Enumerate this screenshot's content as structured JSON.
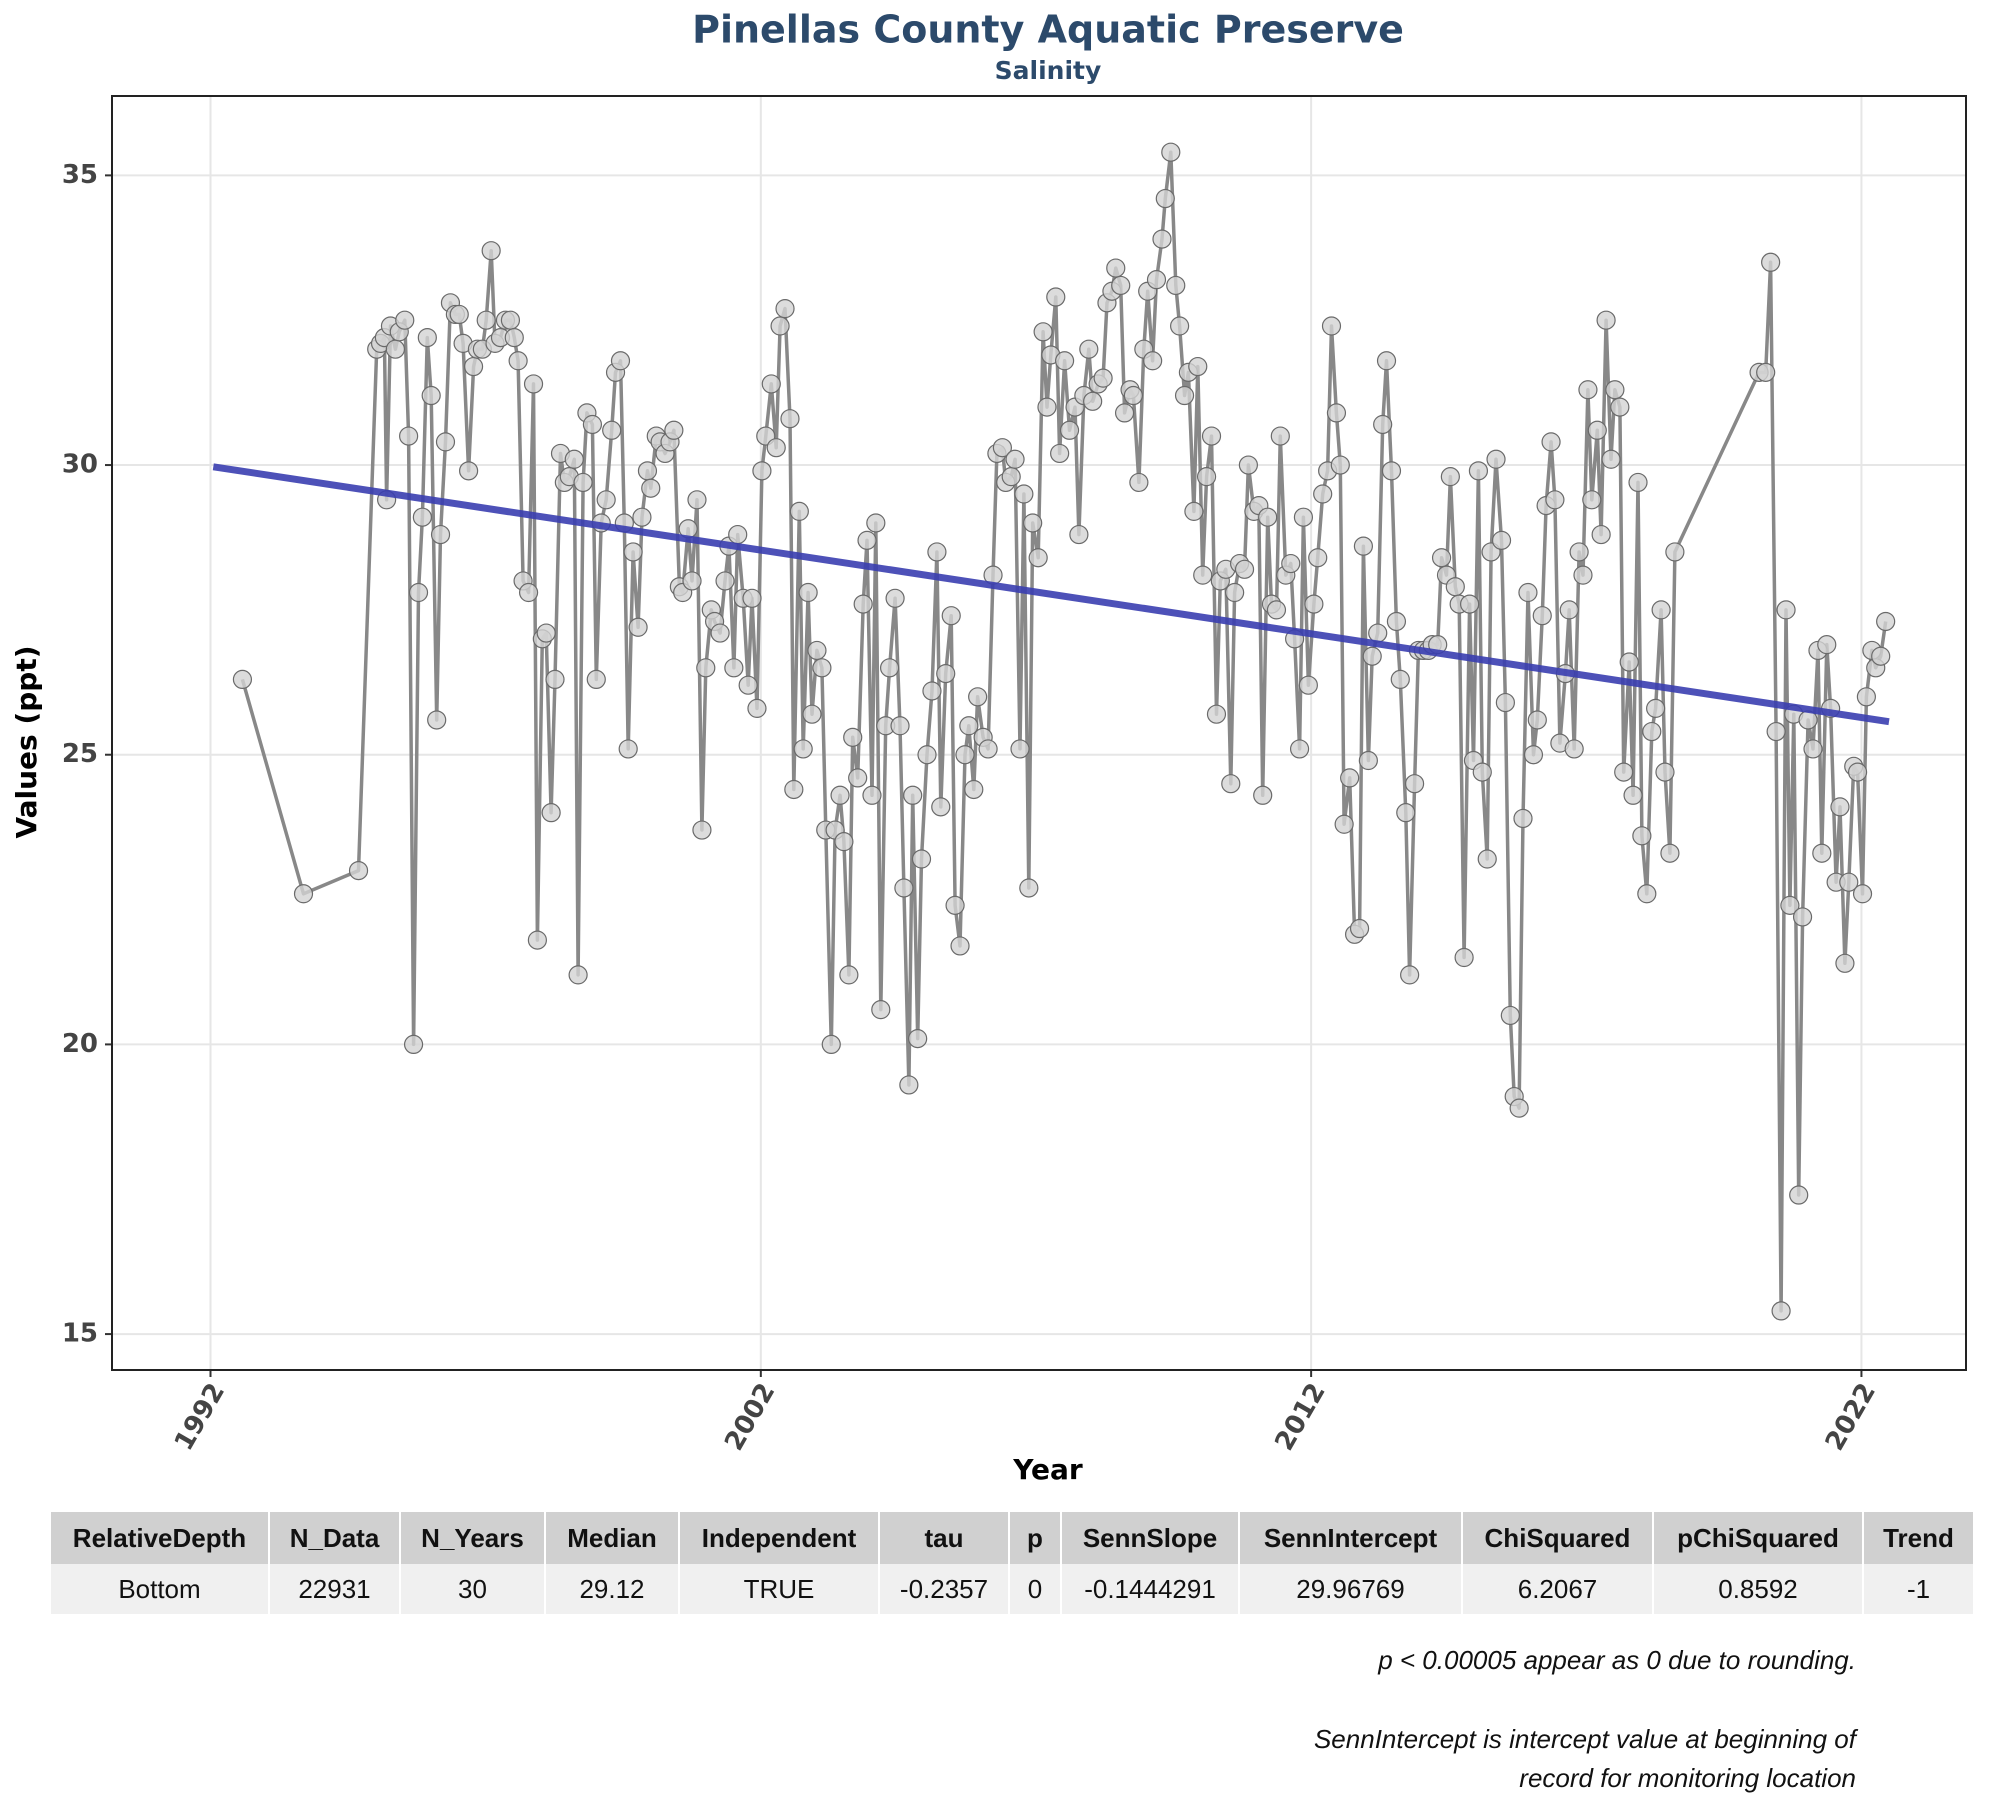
{
  "chart_data": {
    "type": "line",
    "title": "Pinellas County Aquatic Preserve",
    "subtitle": "Salinity",
    "x_label": "Year",
    "y_label": "Values (ppt)",
    "xlim": [
      1990.21,
      2023.9
    ],
    "ylim": [
      14.38,
      36.37
    ],
    "xticks": [
      1992,
      2002,
      2012,
      2022
    ],
    "yticks": [
      15,
      20,
      25,
      30,
      35
    ],
    "grid": true,
    "x": [
      1992.58,
      1993.69,
      1994.69,
      1995.02,
      1995.09,
      1995.16,
      1995.2,
      1995.27,
      1995.36,
      1995.43,
      1995.53,
      1995.6,
      1995.69,
      1995.78,
      1995.85,
      1995.94,
      1996.01,
      1996.11,
      1996.18,
      1996.27,
      1996.36,
      1996.45,
      1996.52,
      1996.59,
      1996.69,
      1996.78,
      1996.85,
      1996.94,
      1997.01,
      1997.1,
      1997.17,
      1997.27,
      1997.36,
      1997.45,
      1997.52,
      1997.59,
      1997.68,
      1997.78,
      1997.87,
      1997.94,
      1998.03,
      1998.1,
      1998.19,
      1998.26,
      1998.36,
      1998.43,
      1998.52,
      1998.61,
      1998.68,
      1998.77,
      1998.84,
      1998.94,
      1999.01,
      1999.1,
      1999.19,
      1999.29,
      1999.36,
      1999.45,
      1999.52,
      1999.59,
      1999.68,
      1999.77,
      1999.84,
      1999.94,
      2000.0,
      2000.1,
      2000.17,
      2000.26,
      2000.35,
      2000.42,
      2000.52,
      2000.58,
      2000.68,
      2000.75,
      2000.84,
      2000.93,
      2001.0,
      2001.1,
      2001.16,
      2001.26,
      2001.35,
      2001.42,
      2001.51,
      2001.58,
      2001.68,
      2001.77,
      2001.84,
      2001.93,
      2002.02,
      2002.09,
      2002.19,
      2002.28,
      2002.35,
      2002.44,
      2002.53,
      2002.6,
      2002.7,
      2002.77,
      2002.86,
      2002.93,
      2003.02,
      2003.11,
      2003.18,
      2003.28,
      2003.35,
      2003.44,
      2003.51,
      2003.6,
      2003.67,
      2003.76,
      2003.86,
      2003.93,
      2004.02,
      2004.09,
      2004.18,
      2004.27,
      2004.34,
      2004.44,
      2004.53,
      2004.6,
      2004.69,
      2004.76,
      2004.85,
      2004.92,
      2005.02,
      2005.11,
      2005.2,
      2005.27,
      2005.36,
      2005.46,
      2005.53,
      2005.62,
      2005.71,
      2005.78,
      2005.87,
      2005.94,
      2006.04,
      2006.13,
      2006.22,
      2006.29,
      2006.39,
      2006.45,
      2006.55,
      2006.62,
      2006.71,
      2006.78,
      2006.87,
      2006.94,
      2007.04,
      2007.13,
      2007.2,
      2007.27,
      2007.36,
      2007.43,
      2007.52,
      2007.61,
      2007.71,
      2007.78,
      2007.87,
      2007.96,
      2008.03,
      2008.13,
      2008.22,
      2008.29,
      2008.38,
      2008.45,
      2008.54,
      2008.61,
      2008.71,
      2008.77,
      2008.87,
      2008.96,
      2009.03,
      2009.12,
      2009.19,
      2009.29,
      2009.35,
      2009.45,
      2009.54,
      2009.61,
      2009.7,
      2009.77,
      2009.87,
      2009.94,
      2010.03,
      2010.1,
      2010.19,
      2010.28,
      2010.35,
      2010.45,
      2010.54,
      2010.61,
      2010.7,
      2010.79,
      2010.86,
      2010.96,
      2011.05,
      2011.12,
      2011.21,
      2011.28,
      2011.37,
      2011.44,
      2011.54,
      2011.63,
      2011.7,
      2011.79,
      2011.86,
      2011.95,
      2012.05,
      2012.12,
      2012.21,
      2012.3,
      2012.37,
      2012.46,
      2012.53,
      2012.6,
      2012.7,
      2012.79,
      2012.88,
      2012.95,
      2013.04,
      2013.11,
      2013.21,
      2013.3,
      2013.37,
      2013.46,
      2013.55,
      2013.62,
      2013.72,
      2013.79,
      2013.88,
      2013.95,
      2014.04,
      2014.13,
      2014.2,
      2014.3,
      2014.37,
      2014.46,
      2014.53,
      2014.62,
      2014.69,
      2014.78,
      2014.88,
      2014.95,
      2015.04,
      2015.11,
      2015.2,
      2015.27,
      2015.36,
      2015.46,
      2015.53,
      2015.62,
      2015.69,
      2015.78,
      2015.85,
      2015.94,
      2016.04,
      2016.11,
      2016.2,
      2016.27,
      2016.36,
      2016.43,
      2016.52,
      2016.62,
      2016.69,
      2016.78,
      2016.87,
      2016.94,
      2017.03,
      2017.1,
      2017.2,
      2017.27,
      2017.36,
      2017.45,
      2017.52,
      2017.61,
      2017.68,
      2017.78,
      2017.85,
      2017.94,
      2018.01,
      2018.1,
      2018.19,
      2018.26,
      2018.36,
      2018.43,
      2018.52,
      2018.61,
      2020.14,
      2020.26,
      2020.35,
      2020.45,
      2020.54,
      2020.63,
      2020.7,
      2020.77,
      2020.86,
      2020.93,
      2021.03,
      2021.12,
      2021.21,
      2021.28,
      2021.37,
      2021.44,
      2021.54,
      2021.61,
      2021.7,
      2021.77,
      2021.86,
      2021.93,
      2022.02,
      2022.09,
      2022.19,
      2022.26,
      2022.35,
      2022.44
    ],
    "series": [
      {
        "color": "#888888",
        "marker_color": "#d3d3d3",
        "values": [
          26.3,
          22.6,
          23.0,
          32.0,
          32.1,
          32.2,
          29.4,
          32.4,
          32.0,
          32.3,
          32.5,
          30.5,
          20.0,
          27.8,
          29.1,
          32.2,
          31.2,
          25.6,
          28.8,
          30.4,
          32.8,
          32.6,
          32.6,
          32.1,
          29.9,
          31.7,
          32.0,
          32.0,
          32.5,
          33.7,
          32.1,
          32.2,
          32.5,
          32.5,
          32.2,
          31.8,
          28.0,
          27.8,
          31.4,
          21.8,
          27.0,
          27.1,
          24.0,
          26.3,
          30.2,
          29.7,
          29.8,
          30.1,
          21.2,
          29.7,
          30.9,
          30.7,
          26.3,
          29.0,
          29.4,
          30.6,
          31.6,
          31.8,
          29.0,
          25.1,
          28.5,
          27.2,
          29.1,
          29.9,
          29.6,
          30.5,
          30.4,
          30.2,
          30.4,
          30.6,
          27.9,
          27.8,
          28.9,
          28.0,
          29.4,
          23.7,
          26.5,
          27.5,
          27.3,
          27.1,
          28.0,
          28.6,
          26.5,
          28.8,
          27.7,
          26.2,
          27.7,
          25.8,
          29.9,
          30.5,
          31.4,
          30.3,
          32.4,
          32.7,
          30.8,
          24.4,
          29.2,
          25.1,
          27.8,
          25.7,
          26.8,
          26.5,
          23.7,
          20.0,
          23.7,
          24.3,
          23.5,
          21.2,
          25.3,
          24.6,
          27.6,
          28.7,
          24.3,
          29.0,
          20.6,
          25.5,
          26.5,
          27.7,
          25.5,
          22.7,
          19.3,
          24.3,
          20.1,
          23.2,
          25.0,
          26.1,
          28.5,
          24.1,
          26.4,
          27.4,
          22.4,
          21.7,
          25.0,
          25.5,
          24.4,
          26.0,
          25.3,
          25.1,
          28.1,
          30.2,
          30.3,
          29.7,
          29.8,
          30.1,
          25.1,
          29.5,
          22.7,
          29.0,
          28.4,
          32.3,
          31.0,
          31.9,
          32.9,
          30.2,
          31.8,
          30.6,
          31.0,
          28.8,
          31.2,
          32.0,
          31.1,
          31.4,
          31.5,
          32.8,
          33.0,
          33.4,
          33.1,
          30.9,
          31.3,
          31.2,
          29.7,
          32.0,
          33.0,
          31.8,
          33.2,
          33.9,
          34.6,
          35.4,
          33.1,
          32.4,
          31.2,
          31.6,
          29.2,
          31.7,
          28.1,
          29.8,
          30.5,
          25.7,
          28.0,
          28.2,
          24.5,
          27.8,
          28.3,
          28.2,
          30.0,
          29.2,
          29.3,
          24.3,
          29.1,
          27.6,
          27.5,
          30.5,
          28.1,
          28.3,
          27.0,
          25.1,
          29.1,
          26.2,
          27.6,
          28.4,
          29.5,
          29.9,
          32.4,
          30.9,
          30.0,
          23.8,
          24.6,
          21.9,
          22.0,
          28.6,
          24.9,
          26.7,
          27.1,
          30.7,
          31.8,
          29.9,
          27.3,
          26.3,
          24.0,
          21.2,
          24.5,
          26.8,
          26.8,
          26.8,
          26.9,
          26.9,
          28.4,
          28.1,
          29.8,
          27.9,
          27.6,
          21.5,
          27.6,
          24.9,
          29.9,
          24.7,
          23.2,
          28.5,
          30.1,
          28.7,
          25.9,
          20.5,
          19.1,
          18.9,
          23.9,
          27.8,
          25.0,
          25.6,
          27.4,
          29.3,
          30.4,
          29.4,
          25.2,
          26.4,
          27.5,
          25.1,
          28.5,
          28.1,
          31.3,
          29.4,
          30.6,
          28.8,
          32.5,
          30.1,
          31.3,
          31.0,
          24.7,
          26.6,
          24.3,
          29.7,
          23.6,
          22.6,
          25.4,
          25.8,
          27.5,
          24.7,
          23.3,
          28.5,
          31.6,
          31.6,
          33.5,
          25.4,
          15.4,
          27.5,
          22.4,
          25.7,
          17.4,
          22.2,
          25.6,
          25.1,
          26.8,
          23.3,
          26.9,
          25.8,
          22.8,
          24.1,
          21.4,
          22.8,
          24.8,
          24.7,
          22.6,
          26.0,
          26.8,
          26.5,
          26.7,
          27.3
        ]
      }
    ],
    "trend": {
      "color": "#3a3eb0",
      "x": [
        1992.05,
        2022.5
      ],
      "values": [
        29.97,
        25.57
      ]
    }
  },
  "table": {
    "columns": [
      "RelativeDepth",
      "N_Data",
      "N_Years",
      "Median",
      "Independent",
      "tau",
      "p",
      "SennSlope",
      "SennIntercept",
      "ChiSquared",
      "pChiSquared",
      "Trend"
    ],
    "rows": [
      [
        "Bottom",
        22931,
        30,
        29.12,
        "TRUE",
        -0.2357,
        0,
        -0.1444291,
        29.96769,
        6.2067,
        0.8592,
        -1
      ]
    ]
  },
  "notes": [
    "p < 0.00005 appear as 0 due to rounding.",
    "SennIntercept is intercept value at beginning of",
    "record for monitoring location"
  ]
}
